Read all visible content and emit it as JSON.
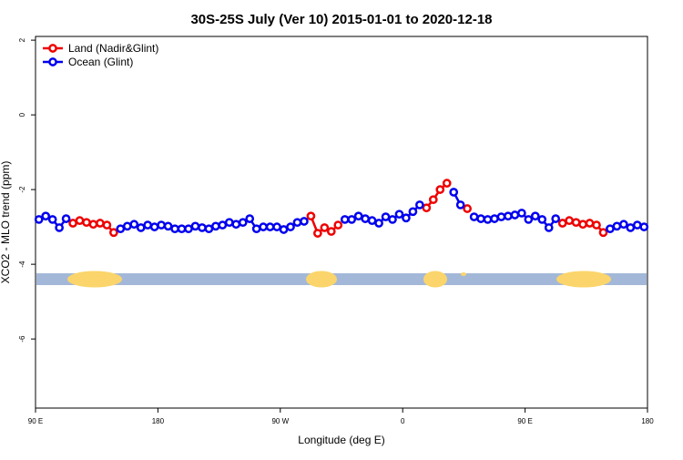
{
  "chart_data": {
    "type": "line",
    "title": "30S-25S July (Ver 10)   2015-01-01 to 2020-12-18",
    "x_label": "Longitude (deg E)",
    "y_label": "XCO2 - MLO trend (ppm)",
    "xlim": [
      90,
      540
    ],
    "xticks": [
      {
        "value": 90,
        "label": "90 E"
      },
      {
        "value": 180,
        "label": "180"
      },
      {
        "value": 270,
        "label": "90 W"
      },
      {
        "value": 360,
        "label": "0"
      },
      {
        "value": 450,
        "label": "90 E"
      },
      {
        "value": 540,
        "label": "180"
      }
    ],
    "ylim": [
      -7.85,
      2.1
    ],
    "yticks": [
      2,
      0,
      -2,
      -4,
      -6
    ],
    "legend": "top-left",
    "x": [
      92.5,
      97.5,
      102.5,
      107.5,
      112.5,
      117.5,
      122.5,
      127.5,
      132.5,
      137.5,
      142.5,
      147.5,
      152.5,
      157.5,
      162.5,
      167.5,
      172.5,
      177.5,
      182.5,
      187.5,
      192.5,
      197.5,
      202.5,
      207.5,
      212.5,
      217.5,
      222.5,
      227.5,
      232.5,
      237.5,
      242.5,
      247.5,
      252.5,
      257.5,
      262.5,
      267.5,
      272.5,
      277.5,
      282.5,
      287.5,
      292.5,
      297.5,
      302.5,
      307.5,
      312.5,
      317.5,
      322.5,
      327.5,
      332.5,
      337.5,
      342.5,
      347.5,
      352.5,
      357.5,
      362.5,
      367.5,
      372.5,
      377.5,
      382.5,
      387.5,
      392.5,
      397.5,
      402.5,
      407.5,
      412.5,
      417.5,
      422.5,
      427.5,
      432.5,
      437.5,
      442.5,
      447.5,
      452.5,
      457.5,
      462.5,
      467.5,
      472.5,
      477.5,
      482.5,
      487.5,
      492.5,
      497.5,
      502.5,
      507.5,
      512.5,
      517.5,
      522.5,
      527.5,
      532.5,
      537.5
    ],
    "series": [
      {
        "name": "Land (Nadir&Glint)",
        "color": "#ee0000",
        "values": [
          null,
          null,
          null,
          null,
          null,
          -2.9,
          -2.83,
          -2.88,
          -2.93,
          -2.9,
          -2.95,
          -3.15,
          null,
          null,
          null,
          null,
          null,
          null,
          null,
          null,
          null,
          null,
          null,
          null,
          null,
          null,
          null,
          null,
          null,
          null,
          null,
          null,
          null,
          null,
          null,
          null,
          null,
          null,
          null,
          null,
          -2.71,
          -3.17,
          -3.02,
          -3.12,
          -2.95,
          null,
          null,
          null,
          null,
          null,
          null,
          null,
          null,
          null,
          null,
          null,
          null,
          -2.49,
          -2.27,
          -2.0,
          -1.83,
          null,
          null,
          -2.51,
          null,
          null,
          null,
          null,
          null,
          null,
          null,
          null,
          null,
          null,
          null,
          null,
          null,
          -2.9,
          -2.83,
          -2.88,
          -2.93,
          -2.9,
          -2.95,
          -3.15,
          null,
          null,
          null,
          null,
          null,
          null
        ]
      },
      {
        "name": "Ocean (Glint)",
        "color": "#0000ee",
        "values": [
          -2.8,
          -2.71,
          -2.8,
          -3.02,
          -2.78,
          null,
          null,
          null,
          null,
          null,
          null,
          null,
          -3.05,
          -2.98,
          -2.93,
          -3.02,
          -2.95,
          -3.0,
          -2.95,
          -2.98,
          -3.05,
          -3.05,
          -3.05,
          -2.98,
          -3.02,
          -3.05,
          -2.98,
          -2.95,
          -2.88,
          -2.93,
          -2.88,
          -2.78,
          -3.05,
          -3.0,
          -3.0,
          -3.0,
          -3.07,
          -3.0,
          -2.88,
          -2.85,
          null,
          null,
          null,
          null,
          null,
          -2.8,
          -2.8,
          -2.71,
          -2.78,
          -2.83,
          -2.9,
          -2.73,
          -2.8,
          -2.66,
          -2.76,
          -2.59,
          -2.41,
          null,
          null,
          null,
          null,
          -2.07,
          -2.41,
          null,
          -2.73,
          -2.78,
          -2.8,
          -2.78,
          -2.73,
          -2.71,
          -2.68,
          -2.63,
          -2.8,
          -2.71,
          -2.8,
          -3.02,
          -2.78,
          null,
          null,
          null,
          null,
          null,
          null,
          null,
          -3.05,
          -2.98,
          -2.93,
          -3.02,
          -2.95,
          -3.0
        ]
      }
    ]
  }
}
